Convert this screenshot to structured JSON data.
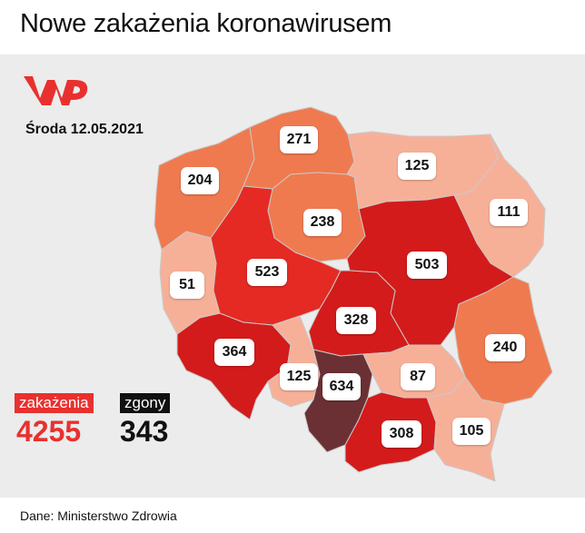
{
  "title": "Nowe zakażenia koronawirusem",
  "date": "Środa 12.05.2021",
  "source": "Dane: Ministerstwo Zdrowia",
  "colors": {
    "accent": "#e8312f",
    "dark": "#111111",
    "panel_bg": "#ececec",
    "scale": [
      "#f7b098",
      "#f07a50",
      "#e52a24",
      "#d31b1b",
      "#6b3034"
    ]
  },
  "logo": {
    "name": "wp-logo",
    "text": "WP"
  },
  "stats": {
    "infections": {
      "label": "zakażenia",
      "value": "4255"
    },
    "deaths": {
      "label": "zgony",
      "value": "343"
    }
  },
  "regions": [
    {
      "name": "pomorskie",
      "value": "271"
    },
    {
      "name": "zachodniopomorskie",
      "value": "204"
    },
    {
      "name": "warmińsko-mazurskie",
      "value": "125"
    },
    {
      "name": "kujawsko-pomorskie",
      "value": "238"
    },
    {
      "name": "podlaskie",
      "value": "111"
    },
    {
      "name": "wielkopolskie",
      "value": "523"
    },
    {
      "name": "mazowieckie",
      "value": "503"
    },
    {
      "name": "lubuskie",
      "value": "51"
    },
    {
      "name": "łódzkie",
      "value": "328"
    },
    {
      "name": "lubelskie",
      "value": "240"
    },
    {
      "name": "dolnośląskie",
      "value": "364"
    },
    {
      "name": "opolskie",
      "value": "125"
    },
    {
      "name": "śląskie",
      "value": "634"
    },
    {
      "name": "świętokrzyskie",
      "value": "87"
    },
    {
      "name": "małopolskie",
      "value": "308"
    },
    {
      "name": "podkarpackie",
      "value": "105"
    }
  ]
}
